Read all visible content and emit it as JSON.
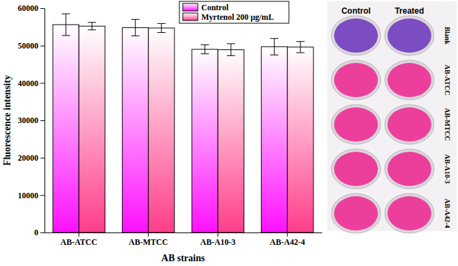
{
  "chart_data": {
    "type": "bar",
    "x_label": "AB strains",
    "y_label": "Fluorescence intensity",
    "categories": [
      "AB-ATCC",
      "AB-MTCC",
      "AB-A10-3",
      "AB-A42-4"
    ],
    "series": [
      {
        "name": "Control",
        "color": "#ff10ff",
        "values": [
          55600,
          54800,
          49000,
          49700
        ],
        "errors": [
          2900,
          2200,
          1200,
          2200
        ]
      },
      {
        "name": "Myrtenol 200 μg/mL",
        "color": "#ff3d8a",
        "values": [
          55200,
          54700,
          48900,
          49600
        ],
        "errors": [
          1000,
          1200,
          1600,
          1500
        ]
      }
    ],
    "ylim": [
      0,
      60000
    ],
    "yticks": [
      0,
      10000,
      20000,
      30000,
      40000,
      50000,
      60000
    ],
    "legend": "top"
  },
  "plate": {
    "columns": [
      "Control",
      "Treated"
    ],
    "rows": [
      "Blank",
      "AB-ATCC",
      "AB-MTCC",
      "AB-A10-3",
      "AB-A42-4"
    ]
  }
}
